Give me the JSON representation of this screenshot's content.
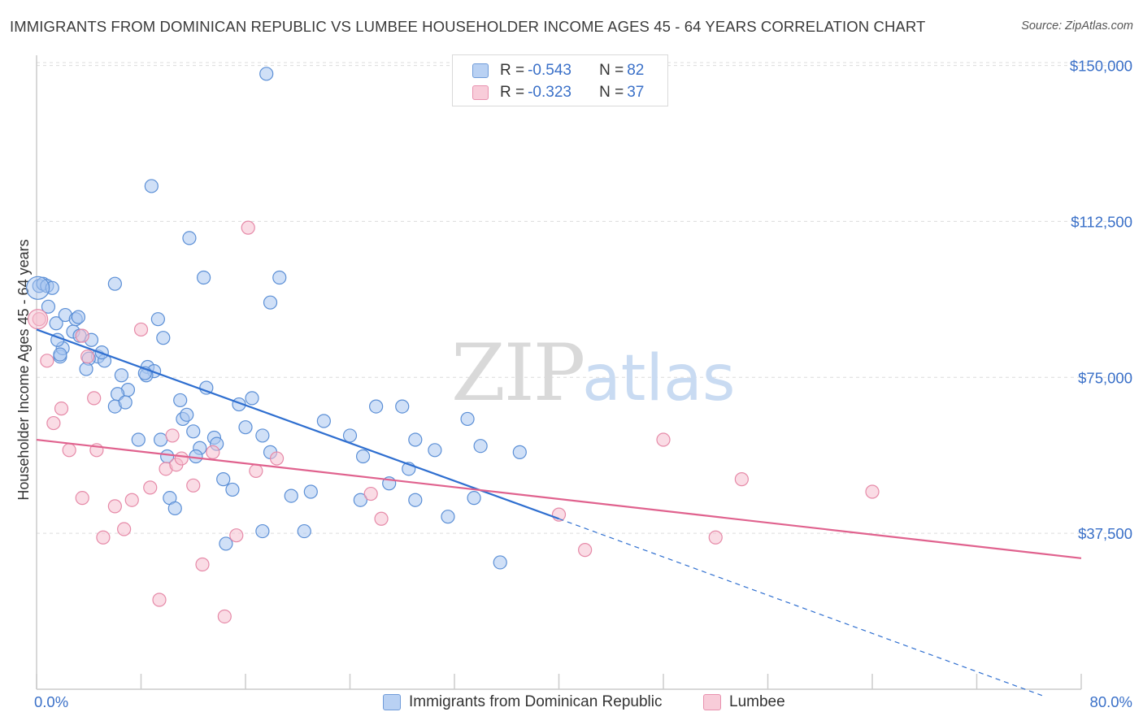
{
  "title": "IMMIGRANTS FROM DOMINICAN REPUBLIC VS LUMBEE HOUSEHOLDER INCOME AGES 45 - 64 YEARS CORRELATION CHART",
  "source": "Source: ZipAtlas.com",
  "watermark": {
    "zip": "ZIP",
    "atlas": "atlas"
  },
  "legend_top": {
    "rows": [
      {
        "r_label": "R = ",
        "r_value": "-0.543",
        "n_label": "N = ",
        "n_value": "82"
      },
      {
        "r_label": "R = ",
        "r_value": "-0.323",
        "n_label": "N = ",
        "n_value": "37"
      }
    ]
  },
  "colors": {
    "blue_fill": "#a9c6f0",
    "blue_stroke": "#5b8fd6",
    "blue_line": "#2f6fd0",
    "pink_fill": "#f5c0d0",
    "pink_stroke": "#e68aa8",
    "pink_line": "#e0628e",
    "axis_label": "#3a70c8",
    "grid": "#dcdcdc"
  },
  "chart_data": {
    "type": "scatter",
    "title": "IMMIGRANTS FROM DOMINICAN REPUBLIC VS LUMBEE HOUSEHOLDER INCOME AGES 45 - 64 YEARS CORRELATION CHART",
    "xlabel": "",
    "ylabel": "Householder Income Ages 45 - 64 years",
    "xlim": [
      0,
      80
    ],
    "ylim": [
      0,
      155000
    ],
    "x_tick_labels": [
      "0.0%",
      "80.0%"
    ],
    "y_ticks": [
      37500,
      75000,
      112500,
      150000
    ],
    "y_tick_labels": [
      "$37,500",
      "$75,000",
      "$112,500",
      "$150,000"
    ],
    "grid": true,
    "legend_placement": "bottom",
    "series": [
      {
        "name": "Immigrants from Dominican Republic",
        "color": "#a9c6f0",
        "trend": {
          "x": [
            0,
            40
          ],
          "y": [
            86500,
            41000
          ]
        },
        "trend_extension": {
          "x": [
            40,
            77
          ],
          "y": [
            41000,
            -1500
          ]
        },
        "points": [
          [
            0.2,
            97000
          ],
          [
            0.5,
            97500
          ],
          [
            0.8,
            97000
          ],
          [
            1.2,
            96500
          ],
          [
            0.9,
            92000
          ],
          [
            1.5,
            88000
          ],
          [
            1.8,
            80000
          ],
          [
            2.0,
            82000
          ],
          [
            1.6,
            84000
          ],
          [
            2.2,
            90000
          ],
          [
            2.8,
            86000
          ],
          [
            3.0,
            89000
          ],
          [
            3.3,
            85000
          ],
          [
            4.2,
            84000
          ],
          [
            4.7,
            80000
          ],
          [
            4.0,
            79500
          ],
          [
            5.2,
            79000
          ],
          [
            5.0,
            81000
          ],
          [
            3.8,
            77000
          ],
          [
            6.5,
            75500
          ],
          [
            7.0,
            72000
          ],
          [
            6.2,
            71000
          ],
          [
            6.0,
            68000
          ],
          [
            6.8,
            69000
          ],
          [
            8.5,
            77500
          ],
          [
            9.0,
            76500
          ],
          [
            8.4,
            75500
          ],
          [
            7.8,
            60000
          ],
          [
            9.5,
            60000
          ],
          [
            10.0,
            56000
          ],
          [
            11.0,
            69500
          ],
          [
            11.2,
            65000
          ],
          [
            11.5,
            66000
          ],
          [
            12.0,
            62000
          ],
          [
            12.5,
            58000
          ],
          [
            12.2,
            56000
          ],
          [
            13.0,
            72500
          ],
          [
            13.6,
            60500
          ],
          [
            13.8,
            59000
          ],
          [
            14.3,
            50500
          ],
          [
            15.0,
            48000
          ],
          [
            15.5,
            68500
          ],
          [
            16.0,
            63000
          ],
          [
            16.5,
            70000
          ],
          [
            17.3,
            61000
          ],
          [
            17.9,
            57000
          ],
          [
            19.5,
            46500
          ],
          [
            20.5,
            38000
          ],
          [
            21.0,
            47500
          ],
          [
            22.0,
            64500
          ],
          [
            24.0,
            61000
          ],
          [
            25.0,
            56000
          ],
          [
            24.8,
            45500
          ],
          [
            26.0,
            68000
          ],
          [
            27.0,
            49500
          ],
          [
            28.0,
            68000
          ],
          [
            28.5,
            53000
          ],
          [
            29.0,
            60000
          ],
          [
            30.5,
            57500
          ],
          [
            31.5,
            41500
          ],
          [
            33.0,
            65000
          ],
          [
            34.0,
            58500
          ],
          [
            33.5,
            46000
          ],
          [
            35.5,
            30500
          ],
          [
            37.0,
            57000
          ],
          [
            29.0,
            45500
          ],
          [
            10.2,
            46000
          ],
          [
            10.6,
            43500
          ],
          [
            14.5,
            35000
          ],
          [
            17.3,
            38000
          ],
          [
            1.8,
            80500
          ],
          [
            8.3,
            76000
          ],
          [
            9.3,
            89000
          ],
          [
            9.7,
            84500
          ],
          [
            11.7,
            108500
          ],
          [
            12.8,
            99000
          ],
          [
            6.0,
            97500
          ],
          [
            8.8,
            121000
          ],
          [
            17.6,
            148000
          ],
          [
            18.6,
            99000
          ],
          [
            17.9,
            93000
          ],
          [
            3.2,
            89500
          ]
        ]
      },
      {
        "name": "Lumbee",
        "color": "#f5c0d0",
        "trend": {
          "x": [
            0,
            80
          ],
          "y": [
            60000,
            31500
          ]
        },
        "points": [
          [
            0.2,
            89000
          ],
          [
            0.8,
            79000
          ],
          [
            1.3,
            64000
          ],
          [
            1.9,
            67500
          ],
          [
            2.5,
            57500
          ],
          [
            3.5,
            85000
          ],
          [
            3.9,
            80000
          ],
          [
            4.4,
            70000
          ],
          [
            4.6,
            57500
          ],
          [
            3.5,
            46000
          ],
          [
            5.1,
            36500
          ],
          [
            6.0,
            44000
          ],
          [
            6.7,
            38500
          ],
          [
            7.3,
            45500
          ],
          [
            8.0,
            86500
          ],
          [
            8.7,
            48500
          ],
          [
            9.4,
            21500
          ],
          [
            9.9,
            53000
          ],
          [
            10.7,
            54000
          ],
          [
            10.4,
            61000
          ],
          [
            11.1,
            55500
          ],
          [
            12.0,
            49000
          ],
          [
            12.7,
            30000
          ],
          [
            13.5,
            57000
          ],
          [
            14.4,
            17500
          ],
          [
            15.3,
            37000
          ],
          [
            16.2,
            111000
          ],
          [
            16.8,
            52500
          ],
          [
            18.4,
            55500
          ],
          [
            26.4,
            41000
          ],
          [
            40.0,
            42000
          ],
          [
            42.0,
            33500
          ],
          [
            48.0,
            60000
          ],
          [
            52.0,
            36500
          ],
          [
            54.0,
            50500
          ],
          [
            64.0,
            47500
          ],
          [
            25.6,
            47000
          ]
        ]
      }
    ]
  },
  "bottom_legend": {
    "blue_label": "Immigrants from Dominican Republic",
    "pink_label": "Lumbee"
  }
}
